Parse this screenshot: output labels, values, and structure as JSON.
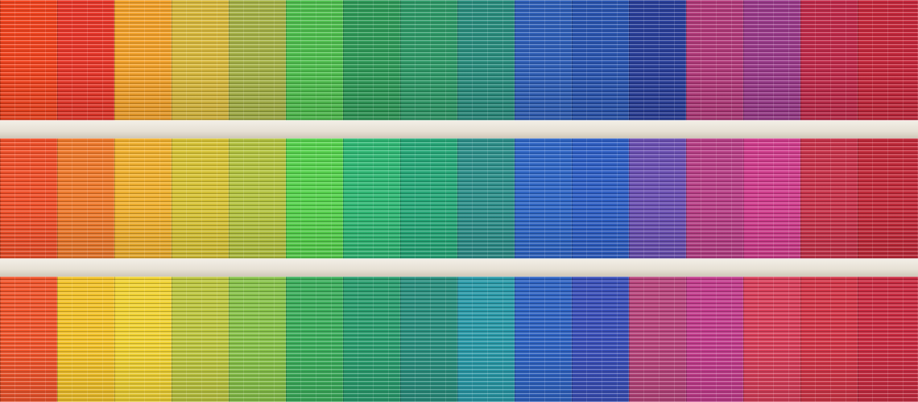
{
  "scene": {
    "rows": [
      {
        "name": "top",
        "colors": [
          "#f1441f",
          "#e8372a",
          "#f2a12a",
          "#d8b93d",
          "#a6b247",
          "#4fbf4e",
          "#2f9a58",
          "#2f9a68",
          "#2a8d7e",
          "#2f5fb8",
          "#2a55b0",
          "#2a3f9a",
          "#b23a7a",
          "#9a3a8a",
          "#c02a4a",
          "#c5283c"
        ]
      },
      {
        "name": "middle",
        "colors": [
          "#f0502a",
          "#ef7a2c",
          "#f0b02e",
          "#d7c336",
          "#b4c340",
          "#56d24d",
          "#2fb874",
          "#26a878",
          "#2d8f8a",
          "#2f66c6",
          "#2e5ec4",
          "#6a4fb2",
          "#b83f86",
          "#d03c8c",
          "#c8334a",
          "#c22a3a"
        ]
      },
      {
        "name": "bottom",
        "colors": [
          "#f0552c",
          "#f2c22a",
          "#f0d233",
          "#bdc640",
          "#88c24a",
          "#3cae5c",
          "#2a9d6e",
          "#2a8f7e",
          "#2a9aa8",
          "#2f63c2",
          "#3a4fb8",
          "#b8457c",
          "#c23c8c",
          "#d83f5a",
          "#d23648",
          "#c92c42"
        ]
      }
    ]
  }
}
